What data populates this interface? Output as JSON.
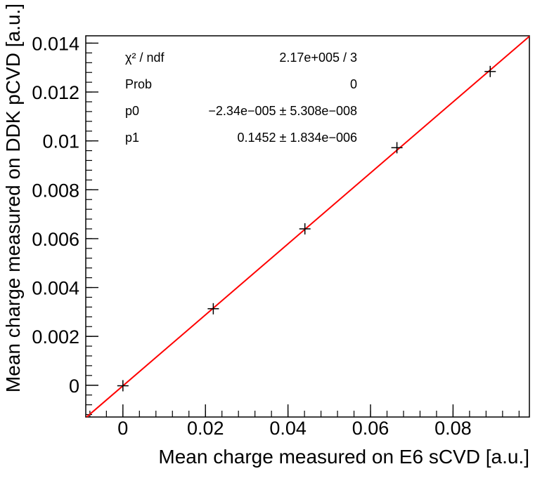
{
  "chart_data": {
    "type": "scatter",
    "xlabel": "Mean charge measured on E6 sCVD [a.u.]",
    "ylabel": "Mean charge measured on DDK pCVD [a.u.]",
    "xlim": [
      -0.009,
      0.0985
    ],
    "ylim": [
      -0.0013,
      0.0143
    ],
    "x_ticks": [
      0,
      0.02,
      0.04,
      0.06,
      0.08
    ],
    "x_tick_labels": [
      "0",
      "0.02",
      "0.04",
      "0.06",
      "0.08"
    ],
    "y_ticks": [
      0,
      0.002,
      0.004,
      0.006,
      0.008,
      0.01,
      0.012,
      0.014
    ],
    "y_tick_labels": [
      "0",
      "0.002",
      "0.004",
      "0.006",
      "0.008",
      "0.01",
      "0.012",
      "0.014"
    ],
    "grid": false,
    "series": [
      {
        "marker": "cross",
        "color": "#000000",
        "x": [
          0.0,
          0.0219,
          0.0441,
          0.0664,
          0.089
        ],
        "y": [
          -2e-05,
          0.00313,
          0.0064,
          0.00972,
          0.01284
        ]
      }
    ],
    "fit_line": {
      "color": "#ff0000",
      "p0": -2.34e-05,
      "p1": 0.1452
    },
    "stats_box": {
      "rows": [
        {
          "name": "χ² / ndf",
          "value": "2.17e+005 / 3"
        },
        {
          "name": "Prob",
          "value": "0"
        },
        {
          "name": "p0",
          "value": "−2.34e−005 ± 5.308e−008"
        },
        {
          "name": "p1",
          "value": "0.1452 ± 1.834e−006"
        }
      ]
    }
  }
}
